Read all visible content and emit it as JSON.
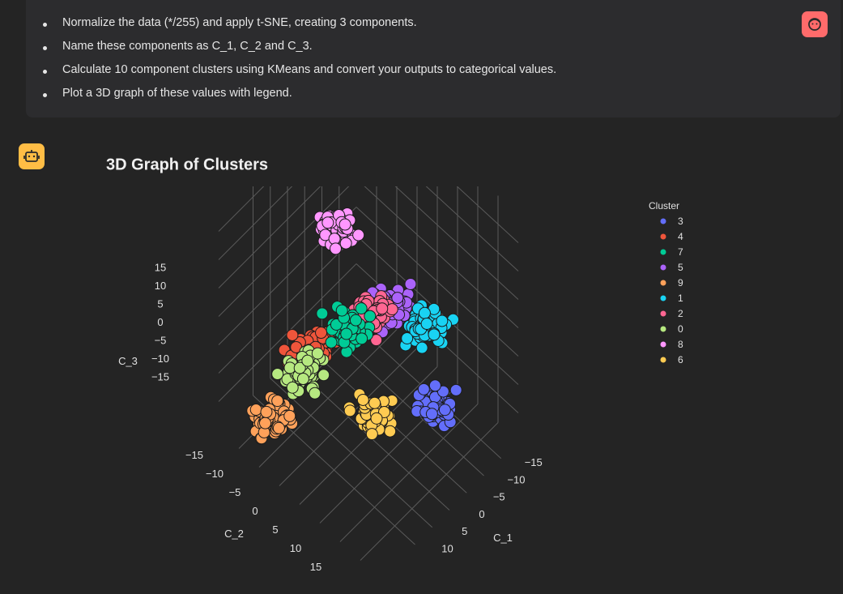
{
  "message": {
    "bullets": [
      "Normalize the data (*/255) and apply t-SNE, creating 3 components.",
      "Name these components as C_1, C_2 and C_3.",
      "Calculate 10 component clusters using KMeans and convert your outputs to categorical values.",
      "Plot a 3D graph of these values with legend."
    ]
  },
  "chart_data": {
    "type": "scatter3d",
    "title": "3D Graph of Clusters",
    "legend_title": "Cluster",
    "xlabel": "C_1",
    "ylabel": "C_2",
    "zlabel": "C_3",
    "xlim": [
      -20,
      20
    ],
    "ylim": [
      -20,
      20
    ],
    "zlim": [
      -20,
      20
    ],
    "xticks": [
      {
        "value": -15,
        "label": "−15"
      },
      {
        "value": -10,
        "label": "−10"
      },
      {
        "value": -5,
        "label": "−5"
      },
      0,
      5,
      10
    ],
    "yticks": [
      {
        "value": -15,
        "label": "−15"
      },
      {
        "value": -10,
        "label": "−10"
      },
      {
        "value": -5,
        "label": "−5"
      },
      0,
      5,
      10,
      15
    ],
    "zticks": [
      {
        "value": -15,
        "label": "−15"
      },
      {
        "value": -10,
        "label": "−10"
      },
      {
        "value": -5,
        "label": "−5"
      },
      0,
      5,
      10,
      15
    ],
    "grid": true,
    "series": [
      {
        "name": "3",
        "color": "#636efa",
        "center": [
          -2,
          15,
          -6
        ]
      },
      {
        "name": "4",
        "color": "#ef553b",
        "center": [
          12,
          -4,
          0
        ]
      },
      {
        "name": "7",
        "color": "#00cc96",
        "center": [
          7,
          1,
          4
        ]
      },
      {
        "name": "5",
        "color": "#ab63fa",
        "center": [
          -2,
          4,
          4
        ]
      },
      {
        "name": "9",
        "color": "#ffa15a",
        "center": [
          16,
          -10,
          -14
        ]
      },
      {
        "name": "1",
        "color": "#19d3f3",
        "center": [
          -6,
          9,
          1
        ]
      },
      {
        "name": "2",
        "color": "#ff6692",
        "center": [
          1,
          1,
          3
        ]
      },
      {
        "name": "0",
        "color": "#b6e880",
        "center": [
          13,
          -5,
          -4
        ]
      },
      {
        "name": "8",
        "color": "#ff97ff",
        "center": [
          2,
          -6,
          14
        ]
      },
      {
        "name": "6",
        "color": "#fecb52",
        "center": [
          6,
          7,
          -8
        ]
      }
    ]
  }
}
